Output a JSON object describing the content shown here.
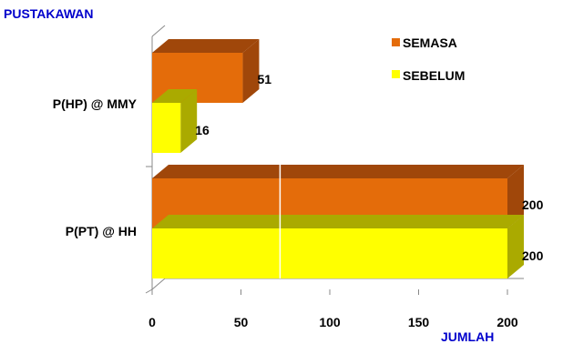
{
  "chart_data": {
    "type": "bar",
    "orientation": "horizontal",
    "three_d": true,
    "categories": [
      "P(HP) @ MMY",
      "P(PT) @ HH"
    ],
    "series": [
      {
        "name": "SEMASA",
        "values": [
          51,
          200
        ]
      },
      {
        "name": "SEBELUM",
        "values": [
          16,
          200
        ]
      }
    ],
    "title": "",
    "ylabel": "PUSTAKAWAN",
    "xlabel": "JUMLAH",
    "xlim": [
      0,
      200
    ],
    "x_ticks": [
      "0",
      "50",
      "100",
      "150",
      "200"
    ],
    "data_labels": [
      "51",
      "16",
      "200",
      "200"
    ],
    "legend_position": "top-right",
    "grid": false
  },
  "colors": {
    "semasa_front": "#E46C0A",
    "semasa_top": "#A0470A",
    "sebelum_front": "#FFFF00",
    "sebelum_side": "#AAAA00",
    "axis_title": "#0000CC"
  }
}
